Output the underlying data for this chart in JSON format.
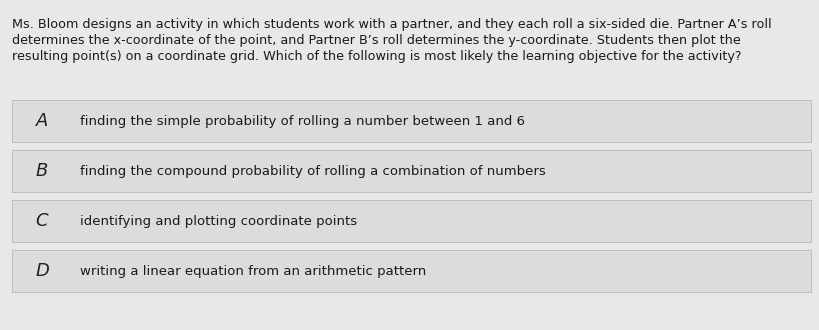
{
  "background_color": "#e8e8e8",
  "question_bg": "#f0efee",
  "question_text_lines": [
    "Ms. Bloom designs an activity in which students work with a partner, and they each roll a six-sided die. Partner A’s roll",
    "determines the x-coordinate of the point, and Partner B’s roll determines the y-coordinate. Students then plot the",
    "resulting point(s) on a coordinate grid. Which of the following is most likely the learning objective for the activity?"
  ],
  "options": [
    {
      "label": "A",
      "text": "finding the simple probability of rolling a number between 1 and 6"
    },
    {
      "label": "B",
      "text": "finding the compound probability of rolling a combination of numbers"
    },
    {
      "label": "C",
      "text": "identifying and plotting coordinate points"
    },
    {
      "label": "D",
      "text": "writing a linear equation from an arithmetic pattern"
    }
  ],
  "option_box_color": "#dcdcdc",
  "option_box_border": "#b8b8b8",
  "option_gap_color": "#c8c8c8",
  "label_font_size": 13,
  "option_font_size": 9.5,
  "question_font_size": 9.2,
  "text_color": "#1a1a1a",
  "label_color": "#222222",
  "fig_width": 8.19,
  "fig_height": 3.3,
  "dpi": 100
}
